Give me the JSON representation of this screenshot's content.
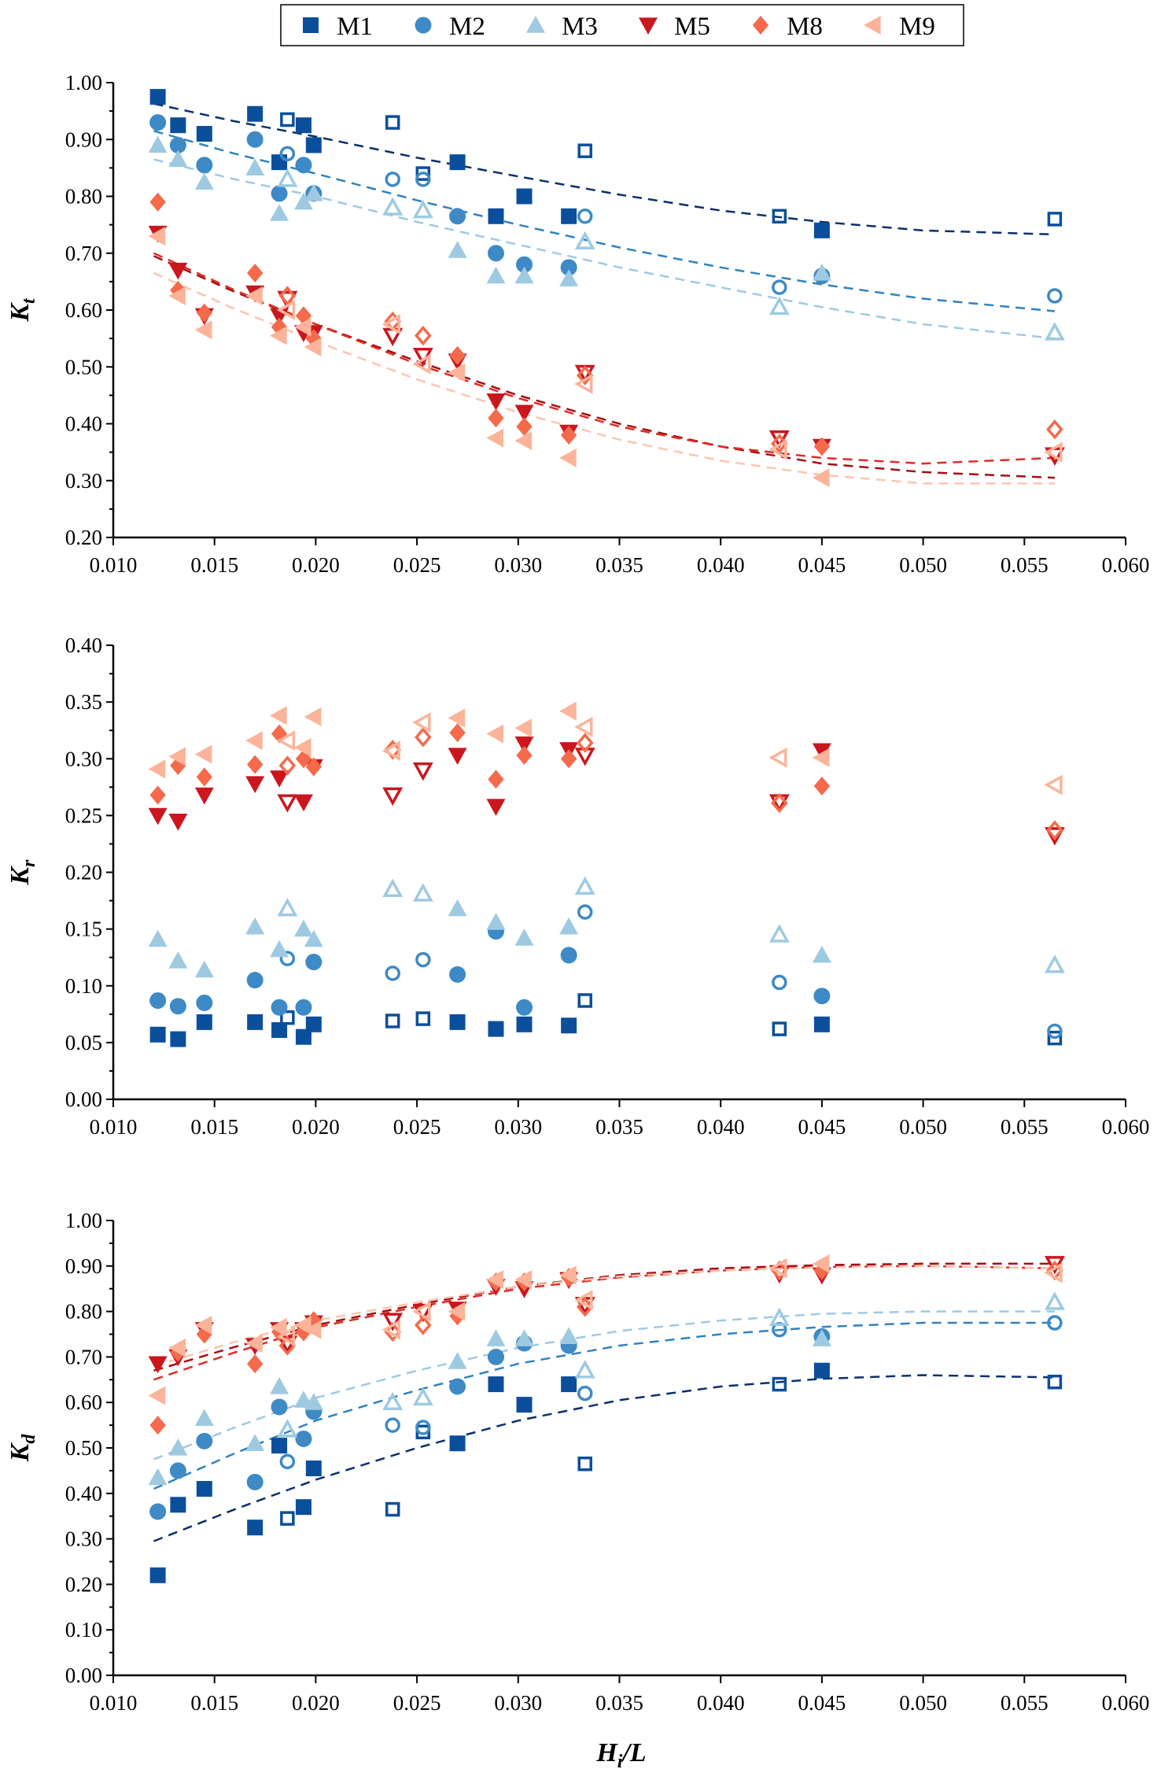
{
  "chart_data": {
    "type": "scatter",
    "legend": {
      "placement": "top-center",
      "entries": [
        {
          "name": "M1",
          "marker": "square",
          "color": "#0b4f9c"
        },
        {
          "name": "M2",
          "marker": "circle",
          "color": "#3d8ac6"
        },
        {
          "name": "M3",
          "marker": "triangle-up",
          "color": "#9ecae1"
        },
        {
          "name": "M5",
          "marker": "triangle-down",
          "color": "#c9171d"
        },
        {
          "name": "M8",
          "marker": "diamond",
          "color": "#f46a4b"
        },
        {
          "name": "M9",
          "marker": "triangle-left",
          "color": "#fbb49a"
        }
      ]
    },
    "fit_colors": {
      "M1": "#08306b",
      "M2": "#3182bd",
      "M3": "#9ecae1",
      "M5": "#a50f15",
      "M8": "#de2d26",
      "M9": "#fcc5b0"
    },
    "xlabel": {
      "base": "H",
      "sub": "i",
      "rest": "/L"
    },
    "xlim": [
      0.01,
      0.06
    ],
    "xticks": [
      "0.010",
      "0.015",
      "0.020",
      "0.025",
      "0.030",
      "0.035",
      "0.040",
      "0.045",
      "0.050",
      "0.055",
      "0.060"
    ],
    "x": [
      0.0122,
      0.0132,
      0.0145,
      0.017,
      0.0182,
      0.0186,
      0.0194,
      0.0199,
      0.0238,
      0.0253,
      0.027,
      0.0289,
      0.0303,
      0.0325,
      0.0333,
      0.0429,
      0.045,
      0.0565
    ],
    "open_indices": [
      5,
      8,
      9,
      14,
      15,
      17
    ],
    "panels": [
      {
        "ylabel": {
          "base": "K",
          "sub": "t"
        },
        "ylim": [
          0.2,
          1.0
        ],
        "yticks": [
          "0.20",
          "0.30",
          "0.40",
          "0.50",
          "0.60",
          "0.70",
          "0.80",
          "0.90",
          "1.00"
        ],
        "series": [
          {
            "name": "M1",
            "values": [
              0.975,
              0.925,
              0.91,
              0.945,
              0.86,
              0.935,
              0.925,
              0.89,
              0.93,
              0.84,
              0.86,
              0.765,
              0.8,
              0.765,
              0.88,
              0.765,
              0.74,
              0.76
            ]
          },
          {
            "name": "M2",
            "values": [
              0.93,
              0.89,
              0.855,
              0.9,
              0.805,
              0.875,
              0.855,
              0.805,
              0.83,
              0.83,
              0.765,
              0.7,
              0.68,
              0.675,
              0.765,
              0.64,
              0.66,
              0.625
            ]
          },
          {
            "name": "M3",
            "values": [
              0.89,
              0.865,
              0.825,
              0.85,
              0.77,
              0.83,
              0.79,
              0.805,
              0.78,
              0.775,
              0.705,
              0.66,
              0.66,
              0.655,
              0.72,
              0.605,
              0.665,
              0.56
            ]
          },
          {
            "name": "M5",
            "values": [
              0.735,
              0.67,
              0.59,
              0.63,
              0.59,
              0.62,
              0.56,
              0.56,
              0.555,
              0.52,
              0.51,
              0.44,
              0.42,
              0.385,
              0.49,
              0.375,
              0.36,
              0.345
            ]
          },
          {
            "name": "M8",
            "values": [
              0.79,
              0.635,
              0.595,
              0.665,
              0.57,
              0.625,
              0.59,
              0.55,
              0.58,
              0.555,
              0.52,
              0.41,
              0.395,
              0.38,
              0.485,
              0.365,
              0.36,
              0.39
            ]
          },
          {
            "name": "M9",
            "values": [
              0.73,
              0.625,
              0.565,
              0.625,
              0.555,
              0.6,
              0.57,
              0.535,
              0.575,
              0.505,
              0.49,
              0.375,
              0.37,
              0.34,
              0.47,
              0.355,
              0.305,
              0.35
            ]
          }
        ],
        "fits": {
          "x": [
            0.012,
            0.016,
            0.02,
            0.025,
            0.03,
            0.035,
            0.04,
            0.045,
            0.05,
            0.0565
          ],
          "series": [
            {
              "name": "M1",
              "values": [
                0.963,
                0.932,
                0.905,
                0.868,
                0.835,
                0.803,
                0.775,
                0.755,
                0.74,
                0.733
              ]
            },
            {
              "name": "M2",
              "values": [
                0.915,
                0.875,
                0.84,
                0.793,
                0.75,
                0.71,
                0.675,
                0.645,
                0.62,
                0.598
              ]
            },
            {
              "name": "M3",
              "values": [
                0.865,
                0.83,
                0.8,
                0.755,
                0.715,
                0.675,
                0.64,
                0.605,
                0.575,
                0.55
              ]
            },
            {
              "name": "M5",
              "values": [
                0.695,
                0.632,
                0.575,
                0.51,
                0.45,
                0.4,
                0.36,
                0.33,
                0.315,
                0.305
              ]
            },
            {
              "name": "M8",
              "values": [
                0.7,
                0.635,
                0.575,
                0.505,
                0.445,
                0.395,
                0.36,
                0.34,
                0.33,
                0.34
              ]
            },
            {
              "name": "M9",
              "values": [
                0.665,
                0.602,
                0.545,
                0.478,
                0.42,
                0.372,
                0.335,
                0.31,
                0.295,
                0.295
              ]
            }
          ]
        }
      },
      {
        "ylabel": {
          "base": "K",
          "sub": "r"
        },
        "ylim": [
          0.0,
          0.4
        ],
        "yticks": [
          "0.00",
          "0.05",
          "0.10",
          "0.15",
          "0.20",
          "0.25",
          "0.30",
          "0.35",
          "0.40"
        ],
        "series": [
          {
            "name": "M1",
            "values": [
              0.057,
              0.053,
              0.068,
              0.068,
              0.061,
              0.072,
              0.055,
              0.066,
              0.069,
              0.071,
              0.068,
              0.062,
              0.066,
              0.065,
              0.087,
              0.062,
              0.066,
              0.054
            ]
          },
          {
            "name": "M2",
            "values": [
              0.087,
              0.082,
              0.085,
              0.105,
              0.081,
              0.124,
              0.081,
              0.121,
              0.111,
              0.123,
              0.11,
              0.148,
              0.081,
              0.127,
              0.165,
              0.103,
              0.091,
              0.06
            ]
          },
          {
            "name": "M3",
            "values": [
              0.141,
              0.122,
              0.114,
              0.152,
              0.132,
              0.168,
              0.15,
              0.141,
              0.185,
              0.181,
              0.168,
              0.156,
              0.142,
              0.152,
              0.187,
              0.145,
              0.127,
              0.118
            ]
          },
          {
            "name": "M5",
            "values": [
              0.25,
              0.245,
              0.268,
              0.278,
              0.283,
              0.262,
              0.262,
              0.293,
              0.268,
              0.29,
              0.303,
              0.258,
              0.313,
              0.308,
              0.303,
              0.262,
              0.307,
              0.233
            ]
          },
          {
            "name": "M8",
            "values": [
              0.268,
              0.294,
              0.284,
              0.295,
              0.322,
              0.294,
              0.3,
              0.293,
              0.308,
              0.319,
              0.323,
              0.282,
              0.303,
              0.3,
              0.314,
              0.261,
              0.276,
              0.237
            ]
          },
          {
            "name": "M9",
            "values": [
              0.291,
              0.302,
              0.304,
              0.316,
              0.338,
              0.316,
              0.31,
              0.337,
              0.307,
              0.332,
              0.336,
              0.322,
              0.327,
              0.342,
              0.328,
              0.301,
              0.301,
              0.277
            ]
          }
        ],
        "fits": null
      },
      {
        "ylabel": {
          "base": "K",
          "sub": "d"
        },
        "ylim": [
          0.0,
          1.0
        ],
        "yticks": [
          "0.00",
          "0.10",
          "0.20",
          "0.30",
          "0.40",
          "0.50",
          "0.60",
          "0.70",
          "0.80",
          "0.90",
          "1.00"
        ],
        "series": [
          {
            "name": "M1",
            "values": [
              0.22,
              0.375,
              0.41,
              0.325,
              0.505,
              0.345,
              0.37,
              0.455,
              0.365,
              0.535,
              0.51,
              0.64,
              0.595,
              0.64,
              0.465,
              0.64,
              0.67,
              0.645
            ]
          },
          {
            "name": "M2",
            "values": [
              0.36,
              0.45,
              0.515,
              0.425,
              0.59,
              0.47,
              0.52,
              0.58,
              0.55,
              0.545,
              0.635,
              0.7,
              0.73,
              0.725,
              0.62,
              0.76,
              0.745,
              0.775
            ]
          },
          {
            "name": "M3",
            "values": [
              0.435,
              0.5,
              0.565,
              0.51,
              0.635,
              0.54,
              0.605,
              0.6,
              0.6,
              0.61,
              0.69,
              0.74,
              0.74,
              0.745,
              0.67,
              0.785,
              0.74,
              0.82
            ]
          },
          {
            "name": "M5",
            "values": [
              0.685,
              0.7,
              0.76,
              0.725,
              0.76,
              0.73,
              0.76,
              0.775,
              0.78,
              0.8,
              0.805,
              0.855,
              0.85,
              0.87,
              0.815,
              0.885,
              0.88,
              0.905
            ]
          },
          {
            "name": "M8",
            "values": [
              0.55,
              0.71,
              0.75,
              0.685,
              0.755,
              0.725,
              0.755,
              0.78,
              0.755,
              0.77,
              0.79,
              0.865,
              0.865,
              0.875,
              0.81,
              0.89,
              0.89,
              0.89
            ]
          },
          {
            "name": "M9",
            "values": [
              0.615,
              0.72,
              0.77,
              0.73,
              0.765,
              0.745,
              0.77,
              0.76,
              0.76,
              0.8,
              0.8,
              0.87,
              0.87,
              0.88,
              0.825,
              0.895,
              0.905,
              0.885
            ]
          }
        ],
        "fits": {
          "x": [
            0.012,
            0.016,
            0.02,
            0.025,
            0.03,
            0.035,
            0.04,
            0.045,
            0.05,
            0.0565
          ],
          "series": [
            {
              "name": "M1",
              "values": [
                0.295,
                0.365,
                0.43,
                0.5,
                0.56,
                0.605,
                0.635,
                0.652,
                0.66,
                0.655
              ]
            },
            {
              "name": "M2",
              "values": [
                0.41,
                0.488,
                0.56,
                0.627,
                0.685,
                0.725,
                0.75,
                0.766,
                0.775,
                0.775
              ]
            },
            {
              "name": "M3",
              "values": [
                0.475,
                0.545,
                0.61,
                0.67,
                0.72,
                0.757,
                0.78,
                0.795,
                0.8,
                0.8
              ]
            },
            {
              "name": "M5",
              "values": [
                0.67,
                0.722,
                0.77,
                0.815,
                0.855,
                0.88,
                0.895,
                0.902,
                0.905,
                0.905
              ]
            },
            {
              "name": "M8",
              "values": [
                0.65,
                0.71,
                0.765,
                0.81,
                0.85,
                0.875,
                0.89,
                0.898,
                0.9,
                0.895
              ]
            },
            {
              "name": "M9",
              "values": [
                0.68,
                0.733,
                0.78,
                0.82,
                0.855,
                0.877,
                0.89,
                0.897,
                0.9,
                0.895
              ]
            }
          ]
        }
      }
    ]
  }
}
